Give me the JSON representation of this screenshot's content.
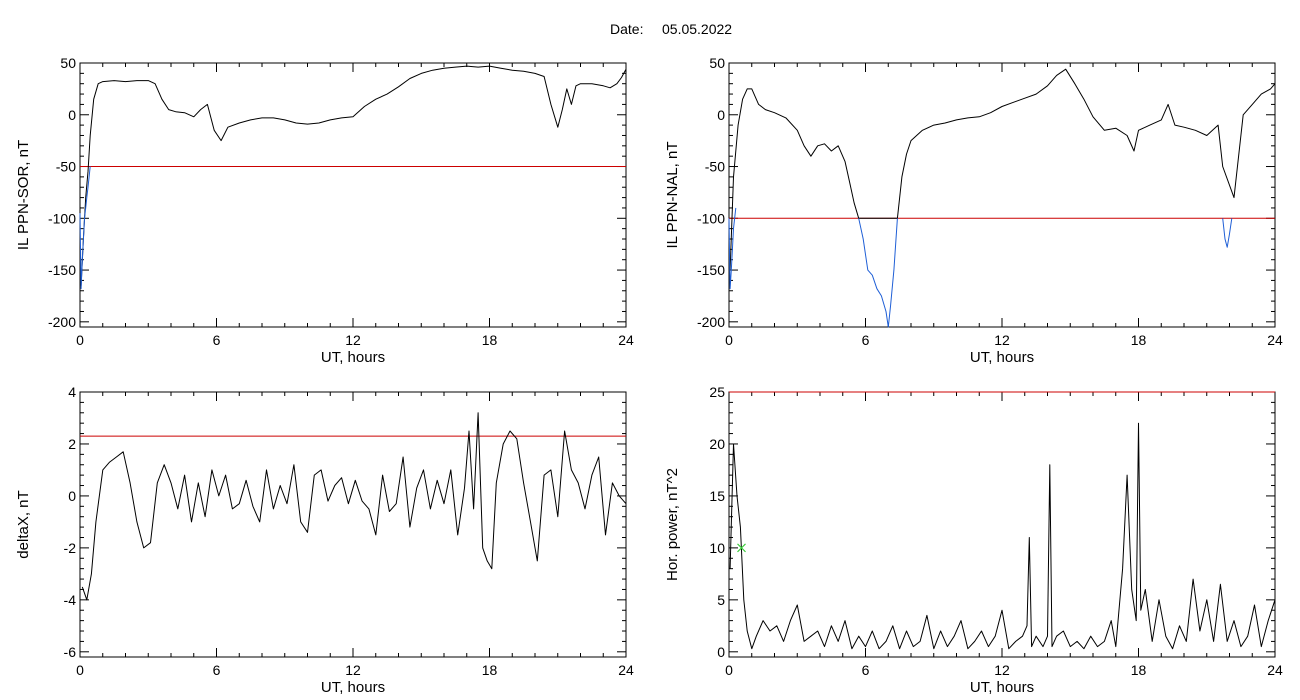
{
  "header": {
    "date_label": "Date:",
    "date_value": "05.05.2022"
  },
  "colors": {
    "line": "#000000",
    "threshold": "#cc0000",
    "highlight": "#1f5fd6",
    "marker": "#33cc33"
  },
  "chart_data": [
    {
      "id": "sor",
      "type": "line",
      "xlabel": "UT, hours",
      "ylabel": "IL PPN-SOR, nT",
      "xlim": [
        0,
        24
      ],
      "ylim": [
        -205,
        50
      ],
      "xticks": [
        0,
        6,
        12,
        18,
        24
      ],
      "yticks": [
        -200,
        -150,
        -100,
        -50,
        0,
        50
      ],
      "threshold": -50,
      "series": [
        {
          "color": "black",
          "x": [
            0.05,
            0.15,
            0.25,
            0.35,
            0.45,
            0.6,
            0.8,
            1.0,
            1.5,
            2.0,
            2.5,
            3.0,
            3.3,
            3.6,
            3.9,
            4.2,
            4.6,
            5.0,
            5.3,
            5.6,
            5.9,
            6.2,
            6.5,
            7.0,
            7.5,
            8.0,
            8.5,
            9.0,
            9.5,
            10.0,
            10.5,
            11.0,
            11.5,
            12.0,
            12.5,
            13.0,
            13.5,
            14.0,
            14.5,
            15.0,
            15.5,
            16.0,
            16.5,
            17.0,
            17.5,
            18.0,
            18.5,
            19.0,
            19.5,
            20.0,
            20.4,
            20.7,
            21.0,
            21.2,
            21.4,
            21.6,
            21.8,
            22.0,
            22.5,
            23.0,
            23.3,
            23.6,
            23.8,
            24.0
          ],
          "y": [
            -165,
            -120,
            -80,
            -55,
            -20,
            15,
            30,
            32,
            33,
            32,
            33,
            33,
            30,
            15,
            5,
            3,
            2,
            -2,
            5,
            10,
            -15,
            -25,
            -12,
            -8,
            -5,
            -3,
            -3,
            -5,
            -8,
            -9,
            -8,
            -5,
            -3,
            -2,
            8,
            15,
            20,
            27,
            35,
            40,
            43,
            45,
            46,
            47,
            46,
            47,
            45,
            43,
            42,
            40,
            37,
            10,
            -12,
            5,
            25,
            10,
            28,
            30,
            30,
            28,
            26,
            30,
            36,
            44
          ]
        },
        {
          "color": "blue",
          "x": [
            0.0,
            0.05,
            0.1,
            0.15,
            0.2,
            0.25,
            0.3,
            0.35,
            0.4,
            0.45
          ],
          "y": [
            -95,
            -168,
            -140,
            -120,
            -100,
            -90,
            -80,
            -70,
            -60,
            -50
          ]
        }
      ]
    },
    {
      "id": "nal",
      "type": "line",
      "xlabel": "UT, hours",
      "ylabel": "IL PPN-NAL, nT",
      "xlim": [
        0,
        24
      ],
      "ylim": [
        -205,
        50
      ],
      "xticks": [
        0,
        6,
        12,
        18,
        24
      ],
      "yticks": [
        -200,
        -150,
        -100,
        -50,
        0,
        50
      ],
      "threshold": -100,
      "series": [
        {
          "color": "black",
          "x": [
            0.05,
            0.2,
            0.4,
            0.6,
            0.8,
            1.0,
            1.3,
            1.6,
            2.0,
            2.5,
            3.0,
            3.3,
            3.6,
            3.9,
            4.2,
            4.5,
            4.8,
            5.1,
            5.3,
            5.5,
            5.7,
            7.4,
            7.6,
            7.8,
            8.0,
            8.5,
            9.0,
            9.5,
            10.0,
            10.5,
            11.0,
            11.5,
            12.0,
            12.5,
            13.0,
            13.5,
            14.0,
            14.4,
            14.8,
            15.2,
            15.6,
            16.0,
            16.5,
            17.0,
            17.5,
            17.8,
            18.0,
            18.5,
            19.0,
            19.3,
            19.6,
            20.0,
            20.5,
            21.0,
            21.5,
            21.7,
            22.2,
            22.6,
            23.0,
            23.4,
            23.8,
            24.0
          ],
          "y": [
            -150,
            -60,
            -10,
            15,
            25,
            25,
            10,
            5,
            2,
            -3,
            -15,
            -30,
            -40,
            -30,
            -28,
            -35,
            -30,
            -45,
            -65,
            -85,
            -100,
            -100,
            -60,
            -38,
            -25,
            -15,
            -10,
            -8,
            -5,
            -3,
            -2,
            2,
            8,
            12,
            16,
            20,
            28,
            38,
            44,
            30,
            15,
            -2,
            -15,
            -13,
            -20,
            -35,
            -15,
            -10,
            -5,
            10,
            -10,
            -12,
            -15,
            -20,
            -10,
            -50,
            -80,
            0,
            10,
            20,
            25,
            30
          ]
        },
        {
          "color": "blue",
          "x": [
            0.0,
            0.05,
            0.1,
            0.15,
            0.2,
            0.3
          ],
          "y": [
            -100,
            -168,
            -150,
            -130,
            -110,
            -90
          ]
        },
        {
          "color": "blue",
          "x": [
            5.7,
            5.9,
            6.1,
            6.3,
            6.5,
            6.7,
            6.9,
            7.0,
            7.1,
            7.25,
            7.4
          ],
          "y": [
            -100,
            -120,
            -150,
            -155,
            -168,
            -175,
            -190,
            -205,
            -185,
            -150,
            -100
          ]
        },
        {
          "color": "blue",
          "x": [
            21.7,
            21.8,
            21.9,
            22.0,
            22.1
          ],
          "y": [
            -100,
            -120,
            -128,
            -115,
            -100
          ]
        }
      ]
    },
    {
      "id": "deltax",
      "type": "line",
      "xlabel": "UT, hours",
      "ylabel": "deltaX, nT",
      "xlim": [
        0,
        24
      ],
      "ylim": [
        -6.2,
        4
      ],
      "xticks": [
        0,
        6,
        12,
        18,
        24
      ],
      "yticks": [
        -6,
        -4,
        -2,
        0,
        2,
        4
      ],
      "threshold": 2.3,
      "series": [
        {
          "color": "black",
          "x": [
            0.1,
            0.3,
            0.5,
            0.7,
            1.0,
            1.3,
            1.6,
            1.9,
            2.2,
            2.5,
            2.8,
            3.1,
            3.4,
            3.7,
            4.0,
            4.3,
            4.6,
            4.9,
            5.2,
            5.5,
            5.8,
            6.1,
            6.4,
            6.7,
            7.0,
            7.3,
            7.6,
            7.9,
            8.2,
            8.5,
            8.8,
            9.1,
            9.4,
            9.7,
            10.0,
            10.3,
            10.6,
            10.9,
            11.2,
            11.5,
            11.8,
            12.1,
            12.4,
            12.7,
            13.0,
            13.3,
            13.6,
            13.9,
            14.2,
            14.5,
            14.8,
            15.1,
            15.4,
            15.7,
            16.0,
            16.3,
            16.6,
            16.9,
            17.1,
            17.3,
            17.5,
            17.7,
            17.9,
            18.1,
            18.3,
            18.6,
            18.9,
            19.2,
            19.5,
            19.8,
            20.1,
            20.4,
            20.7,
            21.0,
            21.3,
            21.6,
            21.9,
            22.2,
            22.5,
            22.8,
            23.1,
            23.4,
            23.7,
            24.0
          ],
          "y": [
            -3.5,
            -4.0,
            -3.0,
            -1.0,
            1.0,
            1.3,
            1.5,
            1.7,
            0.5,
            -1.0,
            -2.0,
            -1.8,
            0.5,
            1.2,
            0.5,
            -0.5,
            0.8,
            -1.0,
            0.5,
            -0.8,
            1.0,
            0.0,
            0.8,
            -0.5,
            -0.3,
            0.6,
            -0.4,
            -1.0,
            1.0,
            -0.5,
            0.4,
            -0.3,
            1.2,
            -1.0,
            -1.4,
            0.8,
            1.0,
            -0.2,
            0.4,
            0.7,
            -0.3,
            0.6,
            -0.2,
            -0.5,
            -1.5,
            0.8,
            -0.6,
            -0.3,
            1.5,
            -1.2,
            0.3,
            1.0,
            -0.5,
            0.6,
            -0.3,
            1.0,
            -1.5,
            0.3,
            2.5,
            -0.5,
            3.2,
            -2.0,
            -2.5,
            -2.8,
            0.5,
            2.0,
            2.5,
            2.2,
            0.5,
            -1.0,
            -2.5,
            0.8,
            1.0,
            -0.8,
            2.5,
            1.0,
            0.5,
            -0.5,
            0.8,
            1.5,
            -1.5,
            0.5,
            0.0,
            -0.3
          ]
        }
      ]
    },
    {
      "id": "power",
      "type": "line",
      "xlabel": "UT, hours",
      "ylabel": "Hor. power, nT^2",
      "xlim": [
        0,
        24
      ],
      "ylim": [
        -0.5,
        25
      ],
      "xticks": [
        0,
        6,
        12,
        18,
        24
      ],
      "yticks": [
        0,
        5,
        10,
        15,
        20,
        25
      ],
      "threshold": 25,
      "marker": {
        "x": 0.55,
        "y": 10
      },
      "series": [
        {
          "color": "black",
          "x": [
            0.05,
            0.2,
            0.35,
            0.5,
            0.65,
            0.8,
            1.0,
            1.2,
            1.5,
            1.8,
            2.1,
            2.4,
            2.7,
            3.0,
            3.3,
            3.6,
            3.9,
            4.2,
            4.5,
            4.8,
            5.1,
            5.4,
            5.7,
            6.0,
            6.3,
            6.6,
            6.9,
            7.2,
            7.5,
            7.8,
            8.1,
            8.4,
            8.7,
            9.0,
            9.3,
            9.6,
            9.9,
            10.2,
            10.5,
            10.8,
            11.1,
            11.4,
            11.7,
            12.0,
            12.3,
            12.6,
            12.9,
            13.1,
            13.2,
            13.3,
            13.5,
            13.8,
            14.0,
            14.1,
            14.2,
            14.4,
            14.7,
            15.0,
            15.3,
            15.6,
            15.9,
            16.2,
            16.5,
            16.8,
            17.0,
            17.3,
            17.5,
            17.7,
            17.9,
            18.0,
            18.1,
            18.3,
            18.6,
            18.9,
            19.2,
            19.5,
            19.8,
            20.1,
            20.4,
            20.7,
            21.0,
            21.3,
            21.6,
            21.9,
            22.2,
            22.5,
            22.8,
            23.1,
            23.4,
            23.7,
            24.0
          ],
          "y": [
            8.0,
            20.0,
            15.0,
            12.0,
            5.0,
            2.0,
            0.3,
            1.5,
            3.0,
            2.0,
            2.5,
            1.0,
            3.0,
            4.5,
            1.0,
            1.5,
            2.0,
            0.5,
            2.5,
            1.0,
            3.0,
            0.3,
            1.5,
            0.5,
            2.0,
            0.3,
            1.0,
            2.5,
            0.3,
            2.0,
            0.5,
            1.0,
            3.5,
            0.3,
            2.0,
            0.5,
            1.5,
            3.0,
            0.3,
            1.0,
            2.0,
            0.5,
            1.5,
            4.0,
            0.3,
            1.0,
            1.5,
            2.5,
            11.0,
            0.5,
            1.5,
            0.5,
            1.5,
            18.0,
            0.5,
            1.5,
            2.0,
            0.5,
            1.0,
            0.3,
            1.5,
            0.5,
            1.0,
            3.0,
            0.5,
            8.0,
            17.0,
            6.0,
            3.0,
            22.0,
            4.0,
            6.0,
            1.0,
            5.0,
            1.5,
            0.3,
            2.5,
            1.0,
            7.0,
            2.0,
            5.0,
            1.0,
            6.5,
            1.0,
            3.0,
            0.5,
            1.5,
            4.5,
            0.5,
            3.0,
            5.0
          ]
        }
      ]
    }
  ]
}
